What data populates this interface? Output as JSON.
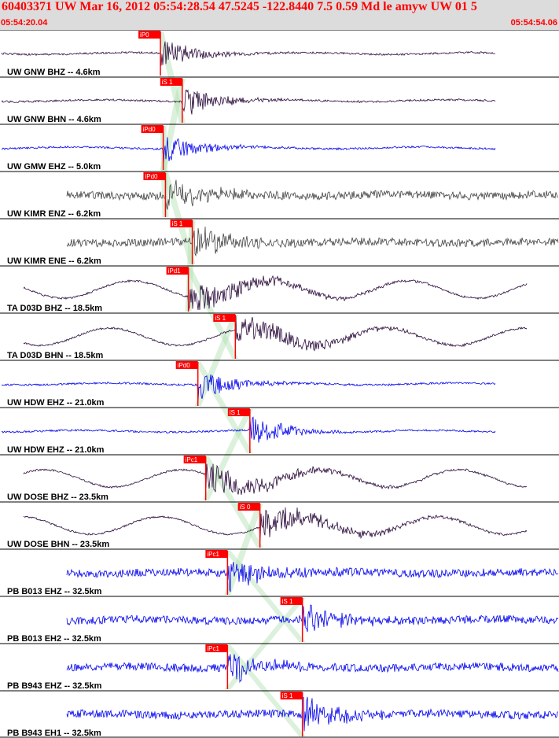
{
  "header": {
    "title": "60403371 UW Mar 16, 2012 05:54:28.54   47.5245 -122.8440  7.5 0.59 Md le amyw UW 01   5",
    "start_time": "05:54:20.04",
    "end_time": "05:54:54.06"
  },
  "chart_data": {
    "type": "line",
    "title": "60403371 UW Mar 16, 2012 05:54:28.54   47.5245 -122.8440  7.5 0.59 Md le amyw UW 01   5",
    "x_range": [
      "05:54:20.04",
      "05:54:54.06"
    ],
    "xlabel": "",
    "ylabel": "",
    "grid": false,
    "colors": {
      "dark": "#2a0a3a",
      "blue": "#0000ee",
      "gray": "#444444",
      "pick": "#ff0000",
      "window": "#b0e0b0"
    },
    "traces": [
      {
        "label": "UW GNW BHZ -- 4.6km",
        "pick": "iP0",
        "pick_frac": 0.287,
        "color": "dark",
        "env": "decay"
      },
      {
        "label": "UW GNW BHN -- 4.6km",
        "pick": "iS 1",
        "pick_frac": 0.326,
        "color": "dark",
        "env": "decay"
      },
      {
        "label": "UW GMW EHZ -- 5.0km",
        "pick": "iPd0",
        "pick_frac": 0.292,
        "color": "blue",
        "env": "decay"
      },
      {
        "label": "UW KIMR ENZ -- 6.2km",
        "pick": "iPd0",
        "pick_frac": 0.296,
        "color": "gray",
        "env": "noise"
      },
      {
        "label": "UW KIMR ENE -- 6.2km",
        "pick": "iS 1",
        "pick_frac": 0.344,
        "color": "gray",
        "env": "noise"
      },
      {
        "label": "TA D03D BHZ -- 18.5km",
        "pick": "iPd1",
        "pick_frac": 0.337,
        "color": "dark",
        "env": "wave"
      },
      {
        "label": "TA D03D BHN -- 18.5km",
        "pick": "iS 1",
        "pick_frac": 0.421,
        "color": "dark",
        "env": "wave"
      },
      {
        "label": "UW HDW EHZ -- 21.0km",
        "pick": "iPd0",
        "pick_frac": 0.354,
        "color": "blue",
        "env": "decay"
      },
      {
        "label": "UW HDW EHZ -- 21.0km",
        "pick": "iS 1",
        "pick_frac": 0.447,
        "color": "blue",
        "env": "decay"
      },
      {
        "label": "UW DOSE BHZ -- 23.5km",
        "pick": "iPc1",
        "pick_frac": 0.368,
        "color": "dark",
        "env": "wave"
      },
      {
        "label": "UW DOSE BHN -- 23.5km",
        "pick": "iS 0",
        "pick_frac": 0.465,
        "color": "dark",
        "env": "wave"
      },
      {
        "label": "PB B013 EHZ -- 32.5km",
        "pick": "iPc1",
        "pick_frac": 0.407,
        "color": "blue",
        "env": "noise"
      },
      {
        "label": "PB B013 EH2 -- 32.5km",
        "pick": "iS 1",
        "pick_frac": 0.541,
        "color": "blue",
        "env": "noise"
      },
      {
        "label": "PB B943 EHZ -- 32.5km",
        "pick": "iPc1",
        "pick_frac": 0.407,
        "color": "blue",
        "env": "noise"
      },
      {
        "label": "PB B943 EH1 -- 32.5km",
        "pick": "iS 1",
        "pick_frac": 0.541,
        "color": "blue",
        "env": "noise"
      }
    ]
  }
}
